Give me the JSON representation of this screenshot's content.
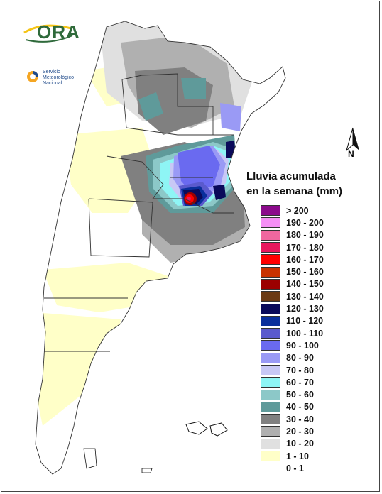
{
  "logos": {
    "ora_text": "ORA",
    "smn_text_lines": [
      "Servicio",
      "Meteorológico",
      "Nacional"
    ]
  },
  "north_label": "N",
  "legend": {
    "title_lines": [
      "Lluvia acumulada",
      "en la semana (mm)"
    ],
    "items": [
      {
        "label": "> 200",
        "color": "#8b0a8b"
      },
      {
        "label": "190 - 200",
        "color": "#f58ff5"
      },
      {
        "label": "180 - 190",
        "color": "#f0679f"
      },
      {
        "label": "170 - 180",
        "color": "#e8175d"
      },
      {
        "label": "160 - 170",
        "color": "#ff0000"
      },
      {
        "label": "150 - 160",
        "color": "#c83200"
      },
      {
        "label": "140 - 150",
        "color": "#9b0000"
      },
      {
        "label": "130 - 140",
        "color": "#6b3a14"
      },
      {
        "label": "120 - 130",
        "color": "#0a0a5a"
      },
      {
        "label": "110 - 120",
        "color": "#0a2f9b"
      },
      {
        "label": "100 - 110",
        "color": "#5a5acd"
      },
      {
        "label": "90 - 100",
        "color": "#6a6af0"
      },
      {
        "label": "80 - 90",
        "color": "#9a9af5"
      },
      {
        "label": "70 - 80",
        "color": "#c8c8f5"
      },
      {
        "label": "60 - 70",
        "color": "#8ef5f5"
      },
      {
        "label": "50 - 60",
        "color": "#8cc8c8"
      },
      {
        "label": "40 - 50",
        "color": "#5f9a9a"
      },
      {
        "label": "30 - 40",
        "color": "#808080"
      },
      {
        "label": "20 - 30",
        "color": "#b0b0b0"
      },
      {
        "label": "10 - 20",
        "color": "#e0e0e0"
      },
      {
        "label": "1 - 10",
        "color": "#ffffc8"
      },
      {
        "label": "0 - 1",
        "color": "#ffffff"
      }
    ]
  }
}
